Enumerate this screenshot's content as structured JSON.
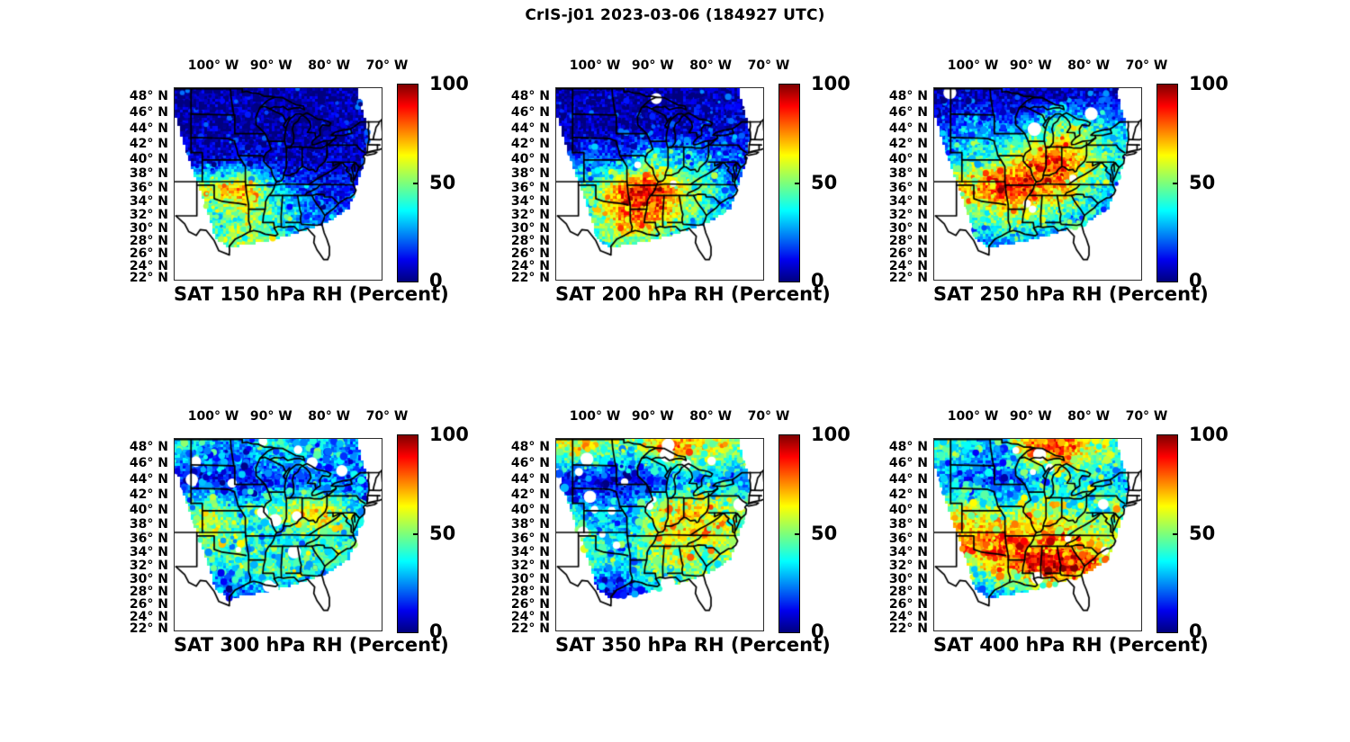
{
  "main_title": "CrIS-j01 2023-03-06 (184927 UTC)",
  "axes": {
    "lon_ticks": [
      {
        "label": "100° W",
        "lon": -100
      },
      {
        "label": "90° W",
        "lon": -90
      },
      {
        "label": "80° W",
        "lon": -80
      },
      {
        "label": "70° W",
        "lon": -70
      }
    ],
    "lat_ticks": [
      {
        "label": "48° N",
        "lat": 48
      },
      {
        "label": "46° N",
        "lat": 46
      },
      {
        "label": "44° N",
        "lat": 44
      },
      {
        "label": "42° N",
        "lat": 42
      },
      {
        "label": "40° N",
        "lat": 40
      },
      {
        "label": "38° N",
        "lat": 38
      },
      {
        "label": "36° N",
        "lat": 36
      },
      {
        "label": "34° N",
        "lat": 34
      },
      {
        "label": "32° N",
        "lat": 32
      },
      {
        "label": "30° N",
        "lat": 30
      },
      {
        "label": "28° N",
        "lat": 28
      },
      {
        "label": "26° N",
        "lat": 26
      },
      {
        "label": "24° N",
        "lat": 24
      },
      {
        "label": "22° N",
        "lat": 22
      }
    ],
    "colorbar": {
      "min": 0,
      "max": 100,
      "ticks": [
        {
          "label": "100",
          "value": 100
        },
        {
          "label": "50",
          "value": 50
        },
        {
          "label": "0",
          "value": 0
        }
      ]
    }
  },
  "colors": {
    "background": "#ffffff",
    "border_lines": "#000000",
    "colormap_low": "#00007f",
    "colormap_mid": "#7dff7a",
    "colormap_high": "#7f0000"
  },
  "chart_data": {
    "type": "heatmap",
    "figure_title": "CrIS-j01 2023-03-06 (184927 UTC)",
    "colormap": "jet",
    "units": "Percent RH",
    "value_range": [
      0,
      100
    ],
    "lon_range": [
      -106.9,
      -71.1
    ],
    "lat_range": [
      21.9,
      49.1
    ],
    "projection": "mercator",
    "grid_lons": [
      -105,
      -100,
      -95,
      -90,
      -85,
      -80,
      -75,
      -70
    ],
    "grid_lats": [
      48,
      44,
      40,
      36,
      32,
      28,
      24
    ],
    "swath_polygon": [
      [
        -106.9,
        49.15
      ],
      [
        -75.4,
        49.15
      ],
      [
        -73.2,
        43.5
      ],
      [
        -74.6,
        38.3
      ],
      [
        -76.6,
        33.2
      ],
      [
        -80.5,
        30.9
      ],
      [
        -85.5,
        29.4
      ],
      [
        -91.5,
        28.0
      ],
      [
        -97.6,
        27.1
      ],
      [
        -99.8,
        28.6
      ],
      [
        -101.3,
        33.0
      ],
      [
        -103.0,
        37.0
      ],
      [
        -104.8,
        41.2
      ],
      [
        -106.9,
        46.1
      ]
    ],
    "panels": [
      {
        "title": "SAT 150 hPa RH (Percent)",
        "pressure_hpa": 150,
        "rh_grid": [
          [
            3,
            3,
            3,
            3,
            3,
            3,
            4,
            4
          ],
          [
            4,
            3,
            3,
            3,
            3,
            4,
            5,
            5
          ],
          [
            8,
            10,
            12,
            8,
            6,
            8,
            10,
            8
          ],
          [
            60,
            60,
            75,
            40,
            18,
            12,
            12,
            10
          ],
          [
            40,
            40,
            55,
            45,
            30,
            22,
            18,
            18
          ],
          [
            45,
            45,
            55,
            48,
            25,
            20,
            15,
            15
          ],
          [
            45,
            45,
            50,
            45,
            25,
            20,
            15,
            15
          ]
        ]
      },
      {
        "title": "SAT 200 hPa RH (Percent)",
        "pressure_hpa": 200,
        "rh_grid": [
          [
            4,
            4,
            3,
            3,
            4,
            5,
            6,
            6
          ],
          [
            5,
            4,
            4,
            5,
            8,
            10,
            10,
            8
          ],
          [
            18,
            25,
            20,
            45,
            35,
            25,
            20,
            12
          ],
          [
            45,
            45,
            85,
            90,
            60,
            45,
            25,
            15
          ],
          [
            50,
            50,
            80,
            75,
            55,
            35,
            22,
            20
          ],
          [
            40,
            40,
            50,
            45,
            30,
            25,
            20,
            18
          ],
          [
            40,
            40,
            45,
            40,
            28,
            22,
            18,
            15
          ]
        ]
      },
      {
        "title": "SAT 250 hPa RH (Percent)",
        "pressure_hpa": 250,
        "rh_grid": [
          [
            6,
            6,
            5,
            4,
            6,
            10,
            8,
            6
          ],
          [
            15,
            30,
            25,
            35,
            55,
            45,
            35,
            15
          ],
          [
            30,
            45,
            50,
            75,
            85,
            55,
            40,
            20
          ],
          [
            70,
            70,
            90,
            80,
            70,
            45,
            30,
            20
          ],
          [
            45,
            45,
            55,
            50,
            40,
            35,
            30,
            25
          ],
          [
            25,
            25,
            30,
            28,
            25,
            22,
            20,
            18
          ],
          [
            25,
            25,
            28,
            25,
            22,
            20,
            18,
            15
          ]
        ]
      },
      {
        "title": "SAT 300 hPa RH (Percent)",
        "pressure_hpa": 300,
        "rh_grid": [
          [
            35,
            30,
            25,
            40,
            35,
            30,
            25,
            15
          ],
          [
            15,
            12,
            10,
            15,
            20,
            25,
            20,
            12
          ],
          [
            45,
            55,
            40,
            50,
            60,
            65,
            35,
            20
          ],
          [
            55,
            55,
            40,
            35,
            40,
            45,
            35,
            25
          ],
          [
            35,
            35,
            45,
            50,
            45,
            40,
            35,
            30
          ],
          [
            15,
            15,
            20,
            30,
            30,
            28,
            25,
            22
          ],
          [
            12,
            12,
            15,
            25,
            25,
            22,
            20,
            18
          ]
        ]
      },
      {
        "title": "SAT 350 hPa RH (Percent)",
        "pressure_hpa": 350,
        "rh_grid": [
          [
            60,
            55,
            45,
            65,
            70,
            60,
            50,
            35
          ],
          [
            15,
            10,
            8,
            12,
            25,
            30,
            25,
            18
          ],
          [
            40,
            30,
            25,
            55,
            70,
            65,
            55,
            35
          ],
          [
            45,
            45,
            35,
            55,
            65,
            60,
            50,
            40
          ],
          [
            40,
            40,
            35,
            50,
            55,
            50,
            45,
            40
          ],
          [
            8,
            8,
            10,
            35,
            40,
            38,
            35,
            30
          ],
          [
            8,
            8,
            10,
            30,
            35,
            32,
            30,
            28
          ]
        ]
      },
      {
        "title": "SAT 400 hPa RH (Percent)",
        "pressure_hpa": 400,
        "rh_grid": [
          [
            45,
            35,
            30,
            75,
            85,
            60,
            40,
            25
          ],
          [
            25,
            18,
            15,
            25,
            35,
            40,
            30,
            20
          ],
          [
            55,
            60,
            45,
            60,
            55,
            45,
            55,
            35
          ],
          [
            75,
            75,
            80,
            70,
            75,
            60,
            50,
            40
          ],
          [
            55,
            55,
            70,
            90,
            95,
            80,
            55,
            45
          ],
          [
            25,
            25,
            30,
            40,
            45,
            40,
            35,
            30
          ],
          [
            20,
            20,
            25,
            35,
            40,
            35,
            30,
            28
          ]
        ]
      }
    ]
  }
}
